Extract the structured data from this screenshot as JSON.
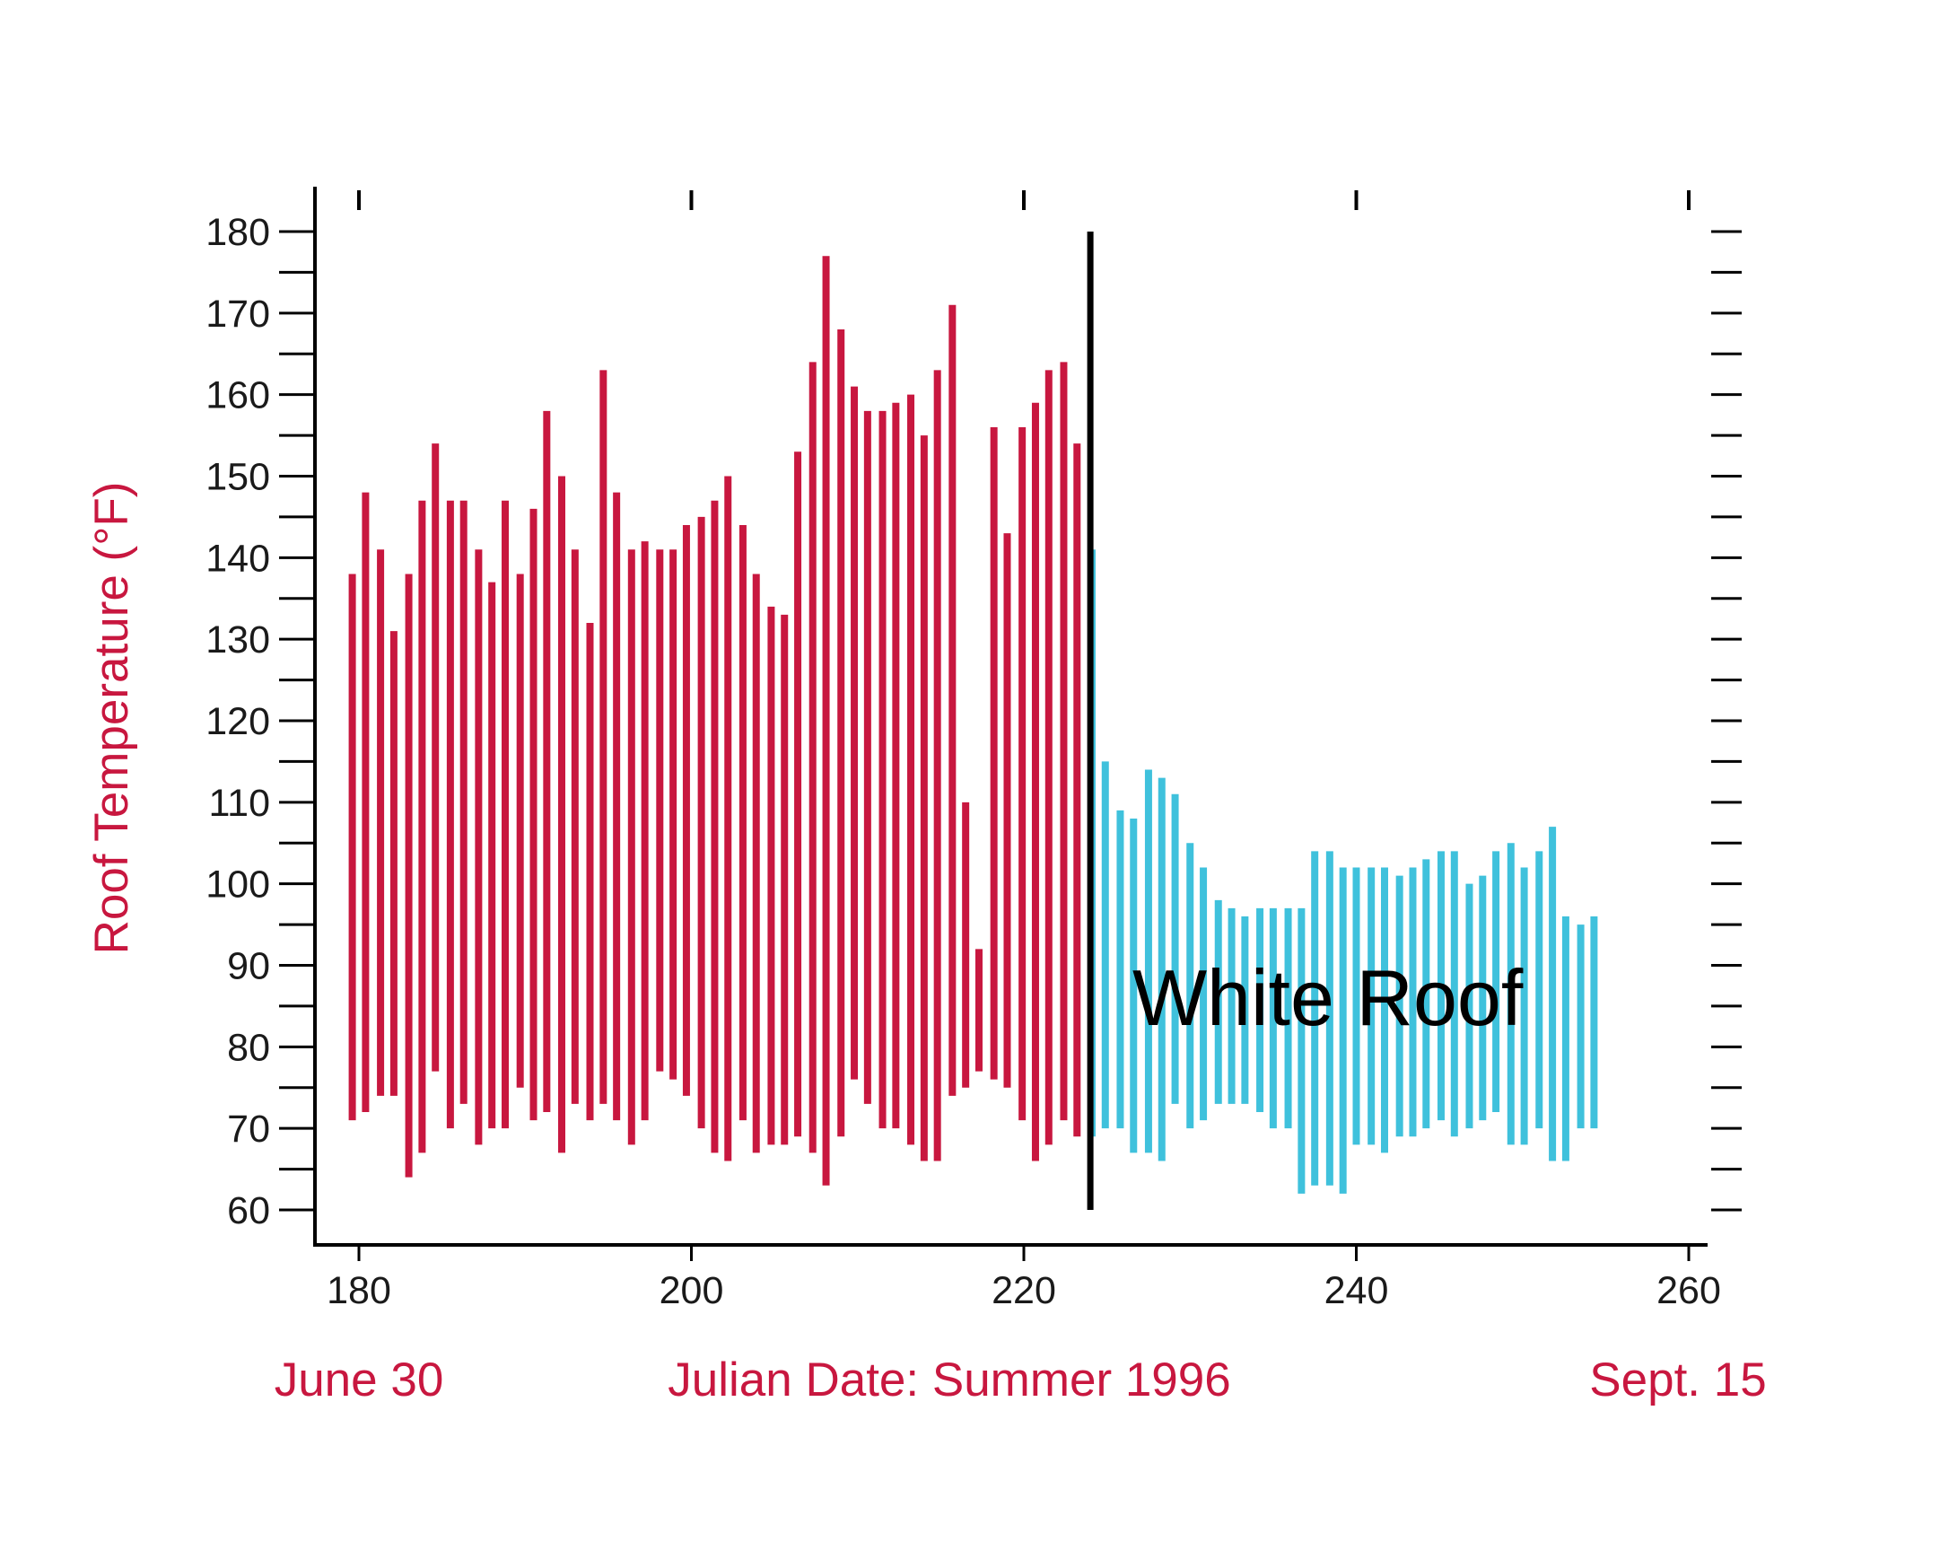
{
  "chart_data": {
    "type": "range-bar",
    "ylabel": "Roof Temperature (°F)",
    "xlabel": "Julian Date: Summer 1996",
    "x_start_label": "June 30",
    "x_end_label": "Sept. 15",
    "xlim": [
      180,
      260
    ],
    "ylim": [
      60,
      180
    ],
    "x_ticks": [
      180,
      200,
      220,
      240,
      260
    ],
    "y_ticks": [
      60,
      70,
      80,
      90,
      100,
      110,
      120,
      130,
      140,
      150,
      160,
      170,
      180
    ],
    "divider_x": 224,
    "annotation": "White Roof",
    "colors": {
      "before": "#c8173f",
      "after": "#3fc1dc",
      "label": "#c8173f",
      "divider": "#000000"
    },
    "series": [
      {
        "color_key": "before",
        "x": [
          179.6,
          180.4,
          181.3,
          182.1,
          183.0,
          183.8,
          184.6,
          185.5,
          186.3,
          187.2,
          188.0,
          188.8,
          189.7,
          190.5,
          191.3,
          192.2,
          193.0,
          193.9,
          194.7,
          195.5,
          196.4,
          197.2,
          198.1,
          198.9,
          199.7,
          200.6,
          201.4,
          202.2,
          203.1,
          203.9,
          204.8,
          205.6,
          206.4,
          207.3,
          208.1,
          209.0,
          209.8,
          210.6,
          211.5,
          212.3,
          213.2,
          214.0,
          214.8,
          215.7,
          216.5,
          217.3,
          218.2,
          219.0,
          219.9,
          220.7,
          221.5,
          222.4,
          223.2
        ],
        "low": [
          71,
          72,
          74,
          74,
          64,
          67,
          77,
          70,
          73,
          68,
          70,
          70,
          75,
          71,
          72,
          67,
          73,
          71,
          73,
          71,
          68,
          71,
          77,
          76,
          74,
          70,
          67,
          66,
          71,
          67,
          68,
          68,
          69,
          67,
          63,
          69,
          76,
          73,
          70,
          70,
          68,
          66,
          66,
          74,
          75,
          77,
          76,
          75,
          71,
          66,
          68,
          71,
          69
        ],
        "high": [
          138,
          148,
          141,
          131,
          138,
          147,
          154,
          147,
          147,
          141,
          137,
          147,
          138,
          146,
          158,
          150,
          141,
          132,
          163,
          148,
          141,
          142,
          141,
          141,
          144,
          145,
          147,
          150,
          144,
          138,
          134,
          133,
          153,
          164,
          177,
          168,
          161,
          158,
          158,
          159,
          160,
          155,
          163,
          171,
          110,
          92,
          156,
          143,
          156,
          159,
          163,
          164,
          154
        ]
      },
      {
        "color_key": "after",
        "x": [
          224.1,
          224.9,
          225.8,
          226.6,
          227.5,
          228.3,
          229.1,
          230.0,
          230.8,
          231.7,
          232.5,
          233.3,
          234.2,
          235.0,
          235.9,
          236.7,
          237.5,
          238.4,
          239.2,
          240.0,
          240.9,
          241.7,
          242.6,
          243.4,
          244.2,
          245.1,
          245.9,
          246.8,
          247.6,
          248.4,
          249.3,
          250.1,
          251.0,
          251.8,
          252.6,
          253.5,
          254.3
        ],
        "low": [
          69,
          70,
          70,
          67,
          67,
          66,
          73,
          70,
          71,
          73,
          73,
          73,
          72,
          70,
          70,
          62,
          63,
          63,
          62,
          68,
          68,
          67,
          69,
          69,
          70,
          71,
          69,
          70,
          71,
          72,
          68,
          68,
          70,
          66,
          66,
          70,
          70
        ],
        "high": [
          141,
          115,
          109,
          108,
          114,
          113,
          111,
          105,
          102,
          98,
          97,
          96,
          97,
          97,
          97,
          97,
          104,
          104,
          102,
          102,
          102,
          102,
          101,
          102,
          103,
          104,
          104,
          100,
          101,
          104,
          105,
          102,
          104,
          107,
          96,
          95,
          96
        ]
      }
    ]
  }
}
